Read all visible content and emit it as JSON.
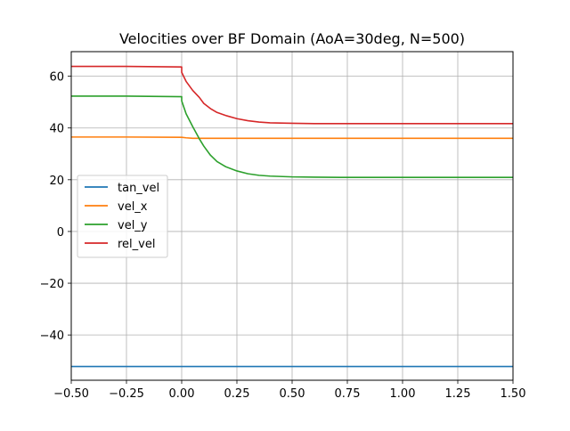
{
  "chart_data": {
    "type": "line",
    "title": "Velocities over BF Domain (AoA=30deg, N=500)",
    "xlabel": "",
    "ylabel": "",
    "xlim": [
      -0.5,
      1.5
    ],
    "ylim": [
      -57.5,
      69.5
    ],
    "xticks": [
      "−0.50",
      "−0.25",
      "0.00",
      "0.25",
      "0.50",
      "0.75",
      "1.00",
      "1.25",
      "1.50"
    ],
    "xtick_values": [
      -0.5,
      -0.25,
      0.0,
      0.25,
      0.5,
      0.75,
      1.0,
      1.25,
      1.5
    ],
    "yticks": [
      "−40",
      "−20",
      "0",
      "20",
      "40",
      "60"
    ],
    "ytick_values": [
      -40,
      -20,
      0,
      20,
      40,
      60
    ],
    "grid": true,
    "legend_position": "center-left",
    "series": [
      {
        "name": "tan_vel",
        "color": "#1f77b4",
        "x": [
          -0.5,
          0.0,
          0.5,
          1.0,
          1.5
        ],
        "y": [
          -52.2,
          -52.2,
          -52.2,
          -52.2,
          -52.2
        ]
      },
      {
        "name": "vel_x",
        "color": "#ff7f0e",
        "x": [
          -0.5,
          -0.25,
          0.0,
          0.02,
          0.05,
          0.1,
          0.25,
          0.5,
          1.0,
          1.5
        ],
        "y": [
          36.5,
          36.5,
          36.4,
          36.2,
          36.0,
          36.0,
          36.0,
          36.0,
          36.0,
          36.0
        ]
      },
      {
        "name": "vel_y",
        "color": "#2ca02c",
        "x": [
          -0.5,
          -0.25,
          0.0,
          0.0,
          0.02,
          0.05,
          0.08,
          0.1,
          0.13,
          0.16,
          0.2,
          0.25,
          0.3,
          0.35,
          0.4,
          0.5,
          0.6,
          0.75,
          1.0,
          1.25,
          1.5
        ],
        "y": [
          52.3,
          52.3,
          52.1,
          50.5,
          45.5,
          40.5,
          35.8,
          33.0,
          29.5,
          27.0,
          25.0,
          23.4,
          22.3,
          21.7,
          21.4,
          21.1,
          21.0,
          20.9,
          20.9,
          20.9,
          20.9
        ]
      },
      {
        "name": "rel_vel",
        "color": "#d62728",
        "x": [
          -0.5,
          -0.25,
          0.0,
          0.0,
          0.02,
          0.05,
          0.08,
          0.1,
          0.13,
          0.16,
          0.2,
          0.25,
          0.3,
          0.35,
          0.4,
          0.5,
          0.6,
          0.75,
          1.0,
          1.25,
          1.5
        ],
        "y": [
          63.8,
          63.8,
          63.6,
          61.5,
          58.0,
          54.5,
          51.8,
          49.5,
          47.5,
          46.0,
          44.8,
          43.6,
          42.8,
          42.3,
          42.0,
          41.8,
          41.7,
          41.7,
          41.7,
          41.7,
          41.7
        ]
      }
    ]
  }
}
